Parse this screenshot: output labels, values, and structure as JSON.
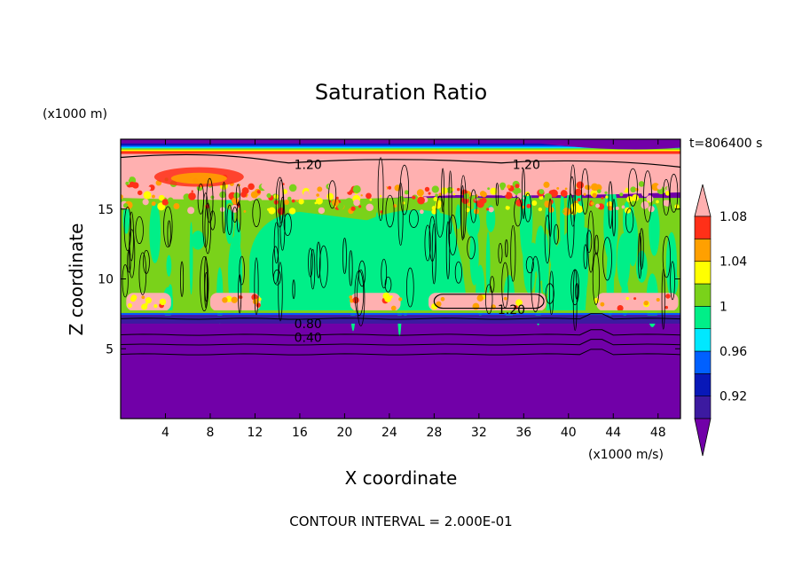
{
  "chart_data": {
    "type": "heatmap",
    "title": "Saturation Ratio",
    "xlabel": "X coordinate",
    "ylabel": "Z coordinate",
    "x_unit": "(x1000 m/s)",
    "y_unit": "(x1000 m)",
    "time_label": "t=806400 s",
    "footer": "CONTOUR INTERVAL = 2.000E-01",
    "xlim": [
      0,
      50
    ],
    "ylim": [
      0,
      20
    ],
    "x_ticks": [
      "4",
      "8",
      "12",
      "16",
      "20",
      "24",
      "28",
      "32",
      "36",
      "40",
      "44",
      "48"
    ],
    "x_tick_values": [
      4,
      8,
      12,
      16,
      20,
      24,
      28,
      32,
      36,
      40,
      44,
      48
    ],
    "y_ticks": [
      "5",
      "10",
      "15"
    ],
    "y_tick_values": [
      5,
      10,
      15
    ],
    "colorbar": {
      "levels": [
        0.9,
        0.92,
        0.94,
        0.96,
        0.98,
        1.0,
        1.02,
        1.04,
        1.06,
        1.08,
        1.1
      ],
      "labels": [
        "0.92",
        "0.96",
        "1",
        "1.04",
        "1.08"
      ],
      "label_values": [
        0.92,
        0.96,
        1.0,
        1.04,
        1.08
      ],
      "colors": [
        "#7100a8",
        "#3c1aa0",
        "#0818b8",
        "#0060ff",
        "#00e8ff",
        "#00ef88",
        "#7ad21a",
        "#ffff00",
        "#ffa000",
        "#ff3018",
        "#ffb0b0"
      ],
      "extend": "both"
    },
    "contour_labels": [
      {
        "text": "1.20",
        "x": 15.5,
        "z": 18.2
      },
      {
        "text": "1.20",
        "x": 35.0,
        "z": 18.2
      },
      {
        "text": "1.20",
        "x": 30.5,
        "z": 7.8
      },
      {
        "text": "0.80",
        "x": 15.5,
        "z": 6.8
      },
      {
        "text": "0.40",
        "x": 15.5,
        "z": 5.8
      }
    ],
    "regions": [
      {
        "label": "0.90",
        "xmin": 0,
        "xmax": 50,
        "zmin": 0,
        "zmax": 7.5
      },
      {
        "label": "0.98",
        "xmin": 12,
        "xmax": 31,
        "zmin": 7.6,
        "zmax": 15.0
      },
      {
        "label": "1.00",
        "xmin": 0,
        "xmax": 50,
        "zmin": 8.0,
        "zmax": 15.5
      },
      {
        "label": "1.10",
        "xmin": 0,
        "xmax": 50,
        "zmin": 16.5,
        "zmax": 19.2
      }
    ]
  }
}
